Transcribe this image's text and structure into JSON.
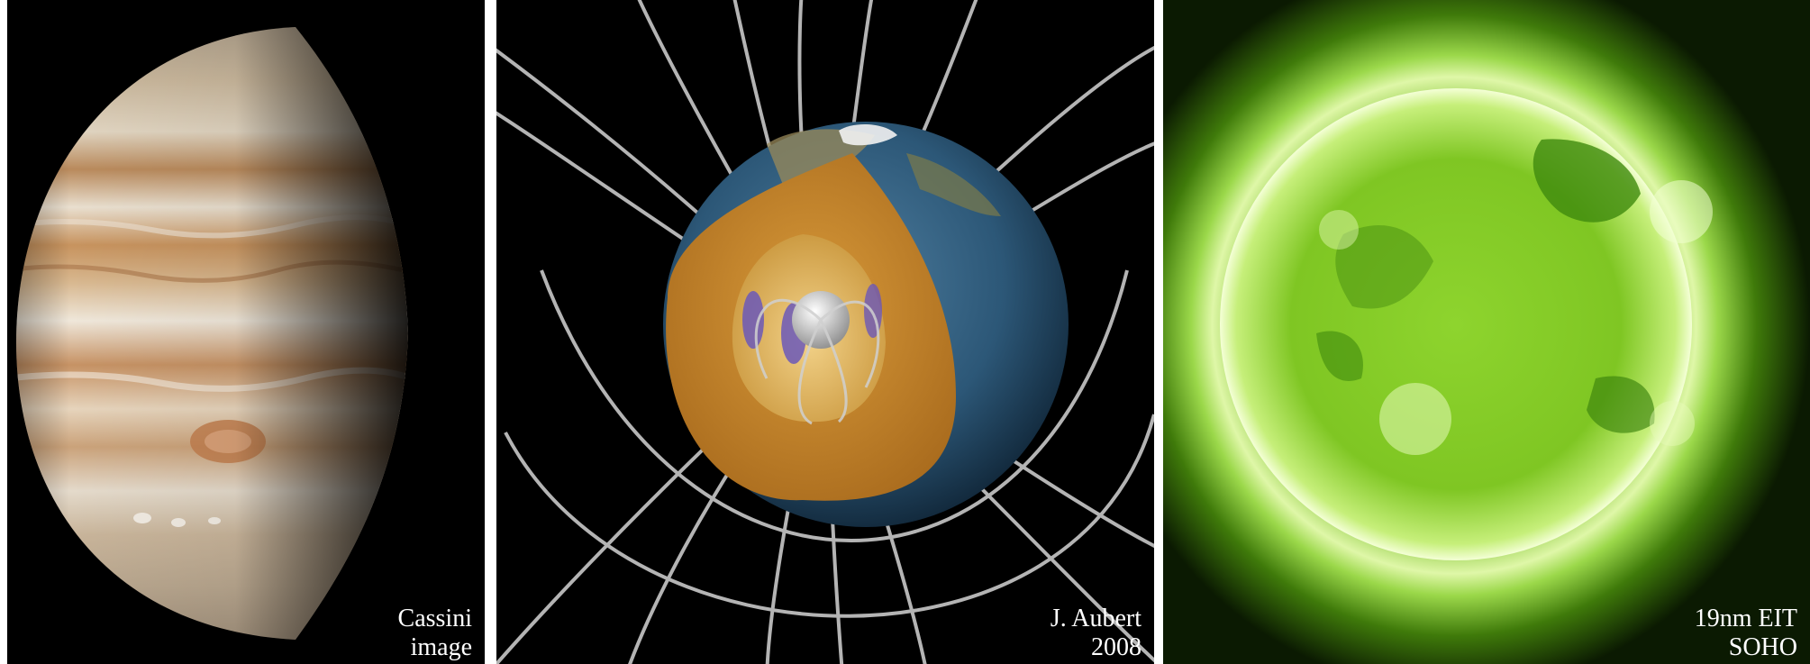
{
  "panels": [
    {
      "id": "jupiter",
      "caption_lines": [
        "Cassini",
        "image"
      ]
    },
    {
      "id": "earth-geodynamo",
      "caption_lines": [
        "J. Aubert",
        "2008"
      ]
    },
    {
      "id": "sun",
      "caption_lines": [
        "19nm EIT",
        "SOHO"
      ]
    }
  ],
  "colors": {
    "page_background": "#ffffff",
    "panel_background": "#000000",
    "caption_text": "#ffffff",
    "sun_green": "#7fd21a",
    "earth_core_orange": "#c8861e",
    "field_lines": "#c8c8c8",
    "jupiter_band_brown": "#b98a5c"
  }
}
